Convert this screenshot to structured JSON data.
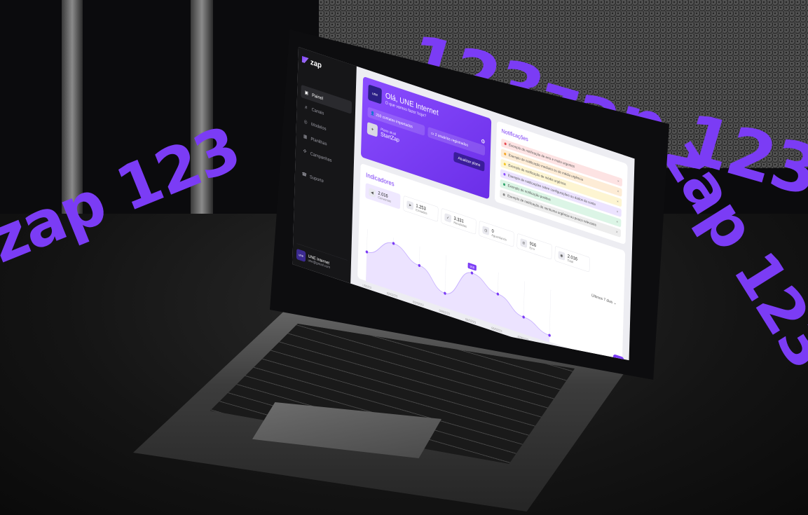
{
  "ribbons": {
    "top": "123zap 123",
    "right": "zap 123",
    "left": "zap 123"
  },
  "app": {
    "brand": "zap"
  },
  "sidebar": {
    "items": [
      {
        "label": "Painel",
        "icon": "panel-icon",
        "glyph": "▣"
      },
      {
        "label": "Canais",
        "icon": "hash-icon",
        "glyph": "#"
      },
      {
        "label": "Modelos",
        "icon": "template-icon",
        "glyph": "◎"
      },
      {
        "label": "Planilhas",
        "icon": "sheet-icon",
        "glyph": "▦"
      },
      {
        "label": "Campanhas",
        "icon": "campaign-icon",
        "glyph": "✣"
      },
      {
        "label": "Suporte",
        "icon": "support-icon",
        "glyph": "☎"
      }
    ],
    "profile": {
      "name": "UNE Internet",
      "email": "une@gmail.com",
      "avatar": "une"
    }
  },
  "welcome": {
    "logo": "une",
    "title": "Olá, UNE Internet",
    "subtitle": "O que vamos fazer hoje?",
    "stats": [
      "250 contatos importados",
      "2 usuários registrados"
    ],
    "plan_label": "Plano atual",
    "plan_name": "StartZap",
    "upgrade_label": "Atualizar plano"
  },
  "notifications": {
    "title": "Notificações",
    "items": [
      {
        "text": "Exemplo de notificação de erro e muito urgentes",
        "color": "#e5484d",
        "bg": "#fde3e3"
      },
      {
        "text": "Exemplo de notificação mediana ou de média urgência",
        "color": "#f5a524",
        "bg": "#fdecd6"
      },
      {
        "text": "Exemplo de notificação de média urgência",
        "color": "#f5c524",
        "bg": "#fdf5d2"
      },
      {
        "text": "Exemplo de notificações sobre configurações ou dados da conta",
        "color": "#8a4dff",
        "bg": "#ece3ff"
      },
      {
        "text": "Exemplo de notificação positiva",
        "color": "#30a46c",
        "bg": "#dcf5e6"
      },
      {
        "text": "Exemplo de notificação de nenhuma urgência ou pouco relevante",
        "color": "#888888",
        "bg": "#ededed"
      }
    ]
  },
  "indicators": {
    "title": "Indicadores",
    "period": "Últimos 7 dias",
    "metrics": [
      {
        "value": "2.016",
        "label": "Conversas",
        "icon": "megaphone-icon",
        "glyph": "◀"
      },
      {
        "value": "1.253",
        "label": "Enviadas",
        "icon": "send-icon",
        "glyph": "➤"
      },
      {
        "value": "3.331",
        "label": "Recebidas",
        "icon": "check-icon",
        "glyph": "✓"
      },
      {
        "value": "0",
        "label": "Aguardando",
        "icon": "clock-icon",
        "glyph": "◷"
      },
      {
        "value": "916",
        "label": "Erro",
        "icon": "error-icon",
        "glyph": "⊘"
      },
      {
        "value": "2.016",
        "label": "Total",
        "icon": "total-icon",
        "glyph": "◉"
      }
    ],
    "tooltip": "908",
    "fab": "☻"
  },
  "chart_data": {
    "type": "area",
    "x": [
      "01/02/23",
      "02/02/23",
      "03/02/23",
      "04/02/23",
      "05/02/23",
      "06/02/23",
      "07/02/23",
      "08/02/23"
    ],
    "series": [
      {
        "values": [
          620,
          980,
          700,
          300,
          908,
          650,
          350,
          150
        ]
      }
    ],
    "ylim": [
      0,
      1100
    ],
    "accent": "#7b3cf5"
  }
}
